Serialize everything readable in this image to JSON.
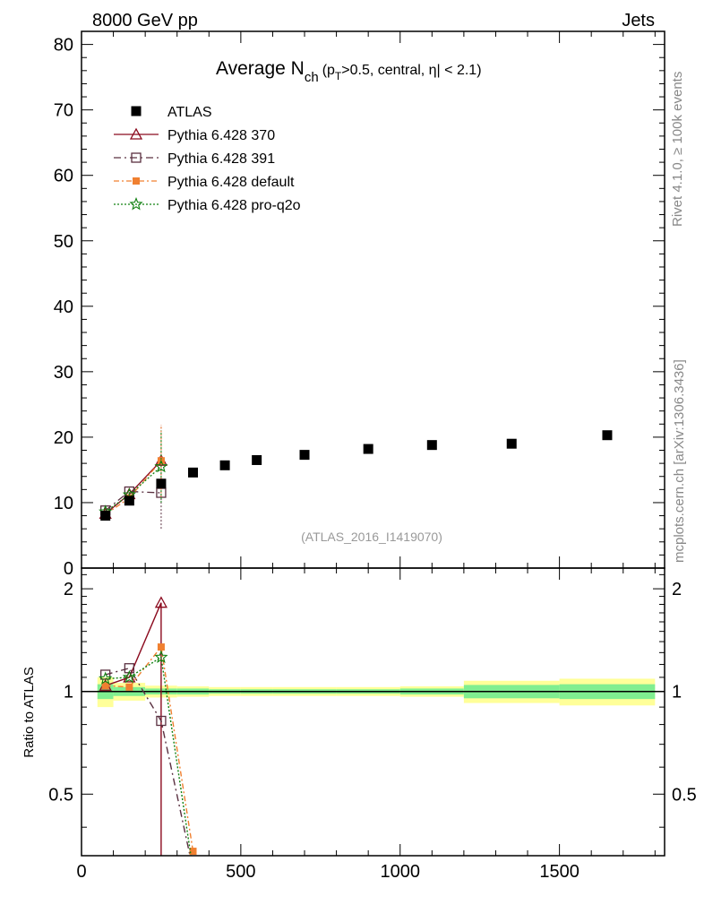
{
  "header": {
    "left": "8000 GeV pp",
    "right": "Jets"
  },
  "side": {
    "rivet": "Rivet 4.1.0, ≥ 100k events",
    "mcplots": "mcplots.cern.ch [arXiv:1306.3436]"
  },
  "chart_data": [
    {
      "type": "scatter",
      "panel": "main",
      "title": "Average N",
      "title_sub": "ch",
      "title_tail": "(p",
      "title_tail_sub": "T",
      "title_tail2": ">0.5, central, η| < 2.1)",
      "watermark": "(ATLAS_2016_I1419070)",
      "xlim": [
        0,
        1830
      ],
      "ylim": [
        0,
        82
      ],
      "yticks": [
        0,
        10,
        20,
        30,
        40,
        50,
        60,
        70,
        80
      ],
      "ytick_labels": [
        "0",
        "10",
        "20",
        "30",
        "40",
        "50",
        "60",
        "70",
        "80"
      ],
      "series": [
        {
          "name": "ATLAS",
          "style": "data",
          "x": [
            75,
            150,
            250,
            350,
            450,
            550,
            700,
            900,
            1100,
            1350,
            1650
          ],
          "y": [
            8.0,
            10.3,
            12.9,
            14.6,
            15.7,
            16.5,
            17.3,
            18.2,
            18.8,
            19.0,
            20.3
          ]
        },
        {
          "name": "Pythia 6.428 370",
          "style": "p370",
          "x": [
            75,
            150,
            250
          ],
          "y": [
            8.3,
            11.3,
            16.4
          ],
          "yerr": [
            0.3,
            0.5,
            5.5
          ]
        },
        {
          "name": "Pythia 6.428 391",
          "style": "p391",
          "x": [
            75,
            150,
            250
          ],
          "y": [
            8.8,
            11.7,
            11.5
          ],
          "yerr": [
            0.3,
            0.5,
            5.5
          ]
        },
        {
          "name": "Pythia 6.428 default",
          "style": "pdef",
          "x": [
            75,
            150,
            250
          ],
          "y": [
            8.2,
            10.7,
            16.4
          ],
          "yerr": [
            0.3,
            0.5,
            5.5
          ]
        },
        {
          "name": "Pythia 6.428 pro-q2o",
          "style": "pq2o",
          "x": [
            75,
            150,
            250
          ],
          "y": [
            8.6,
            11.2,
            15.5
          ],
          "yerr": [
            0.3,
            0.5,
            5.5
          ]
        }
      ]
    },
    {
      "type": "line",
      "panel": "ratio",
      "ylabel": "Ratio to ATLAS",
      "xlabel": "",
      "xlim": [
        0,
        1830
      ],
      "ylim": [
        0.33,
        2.3
      ],
      "yscale": "log",
      "yticks": [
        0.5,
        1,
        2
      ],
      "ytick_labels": [
        "0.5",
        "1",
        "2"
      ],
      "xticks": [
        0,
        500,
        1000,
        1500
      ],
      "xtick_labels": [
        "0",
        "500",
        "1000",
        "1500"
      ],
      "ref_bins": [
        {
          "x0": 50,
          "x1": 100,
          "green": 0.05,
          "yellow": 0.1
        },
        {
          "x0": 100,
          "x1": 200,
          "green": 0.03,
          "yellow": 0.06
        },
        {
          "x0": 200,
          "x1": 300,
          "green": 0.02,
          "yellow": 0.04
        },
        {
          "x0": 300,
          "x1": 400,
          "green": 0.02,
          "yellow": 0.035
        },
        {
          "x0": 400,
          "x1": 500,
          "green": 0.015,
          "yellow": 0.03
        },
        {
          "x0": 500,
          "x1": 600,
          "green": 0.015,
          "yellow": 0.03
        },
        {
          "x0": 600,
          "x1": 800,
          "green": 0.015,
          "yellow": 0.03
        },
        {
          "x0": 800,
          "x1": 1000,
          "green": 0.015,
          "yellow": 0.03
        },
        {
          "x0": 1000,
          "x1": 1200,
          "green": 0.02,
          "yellow": 0.035
        },
        {
          "x0": 1200,
          "x1": 1500,
          "green": 0.045,
          "yellow": 0.075
        },
        {
          "x0": 1500,
          "x1": 1800,
          "green": 0.05,
          "yellow": 0.09
        }
      ],
      "series": [
        {
          "name": "Pythia 6.428 370",
          "style": "p370",
          "x": [
            75,
            150,
            250,
            250,
            350
          ],
          "y": [
            1.04,
            1.1,
            1.82,
            0.3,
            0.3
          ],
          "markers": [
            true,
            true,
            true,
            false,
            false
          ]
        },
        {
          "name": "Pythia 6.428 391",
          "style": "p391",
          "x": [
            75,
            150,
            250,
            350
          ],
          "y": [
            1.12,
            1.17,
            0.82,
            0.3
          ],
          "markers": [
            true,
            true,
            true,
            false
          ]
        },
        {
          "name": "Pythia 6.428 default",
          "style": "pdef",
          "x": [
            75,
            150,
            250,
            350
          ],
          "y": [
            1.04,
            1.03,
            1.35,
            0.34
          ],
          "markers": [
            true,
            true,
            true,
            true
          ]
        },
        {
          "name": "Pythia 6.428 pro-q2o",
          "style": "pq2o",
          "x": [
            75,
            150,
            250,
            350
          ],
          "y": [
            1.09,
            1.1,
            1.26,
            0.3
          ],
          "markers": [
            true,
            true,
            true,
            false
          ]
        }
      ]
    }
  ],
  "styles": {
    "data": {
      "color": "#000000",
      "marker": "square-filled",
      "dash": ""
    },
    "p370": {
      "color": "#8b0a1e",
      "marker": "triangle-open",
      "dash": ""
    },
    "p391": {
      "color": "#5a3040",
      "marker": "square-open",
      "dash": "8,4,2,4"
    },
    "pdef": {
      "color": "#f08030",
      "marker": "square-filled-small",
      "dash": "6,3,2,3"
    },
    "pq2o": {
      "color": "#108010",
      "marker": "star",
      "dash": "2,2"
    }
  }
}
